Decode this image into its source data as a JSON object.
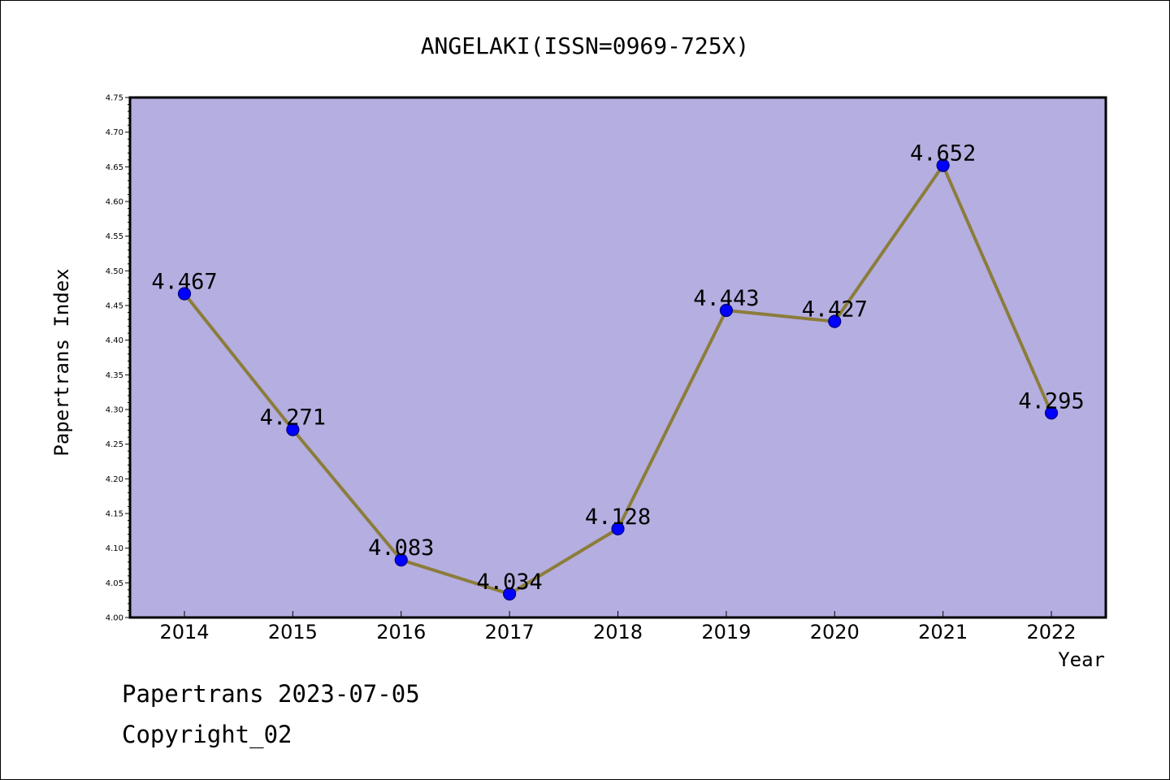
{
  "chart_data": {
    "type": "line",
    "title": "ANGELAKI(ISSN=0969-725X)",
    "xlabel": "Year",
    "ylabel": "Papertrans Index",
    "categories": [
      "2014",
      "2015",
      "2016",
      "2017",
      "2018",
      "2019",
      "2020",
      "2021",
      "2022"
    ],
    "series": [
      {
        "values": [
          4.467,
          4.271,
          4.083,
          4.034,
          4.128,
          4.443,
          4.427,
          4.652,
          4.295
        ],
        "labels": [
          "4.467",
          "4.271",
          "4.083",
          "4.034",
          "4.128",
          "4.443",
          "4.427",
          "4.652",
          "4.295"
        ]
      }
    ],
    "ylim": [
      4.0,
      4.75
    ],
    "yticks": [
      "4.00",
      "4.05",
      "4.10",
      "4.15",
      "4.20",
      "4.25",
      "4.30",
      "4.35",
      "4.40",
      "4.45",
      "4.50",
      "4.55",
      "4.60",
      "4.65",
      "4.70",
      "4.75"
    ],
    "grid": false,
    "colors": {
      "plot_background": "#b5aee1",
      "line": "#8b7d3a",
      "marker": "#0000ff",
      "marker_edge": "#000080"
    }
  },
  "footer": {
    "line1": "Papertrans 2023-07-05",
    "line2": "Copyright_02"
  }
}
